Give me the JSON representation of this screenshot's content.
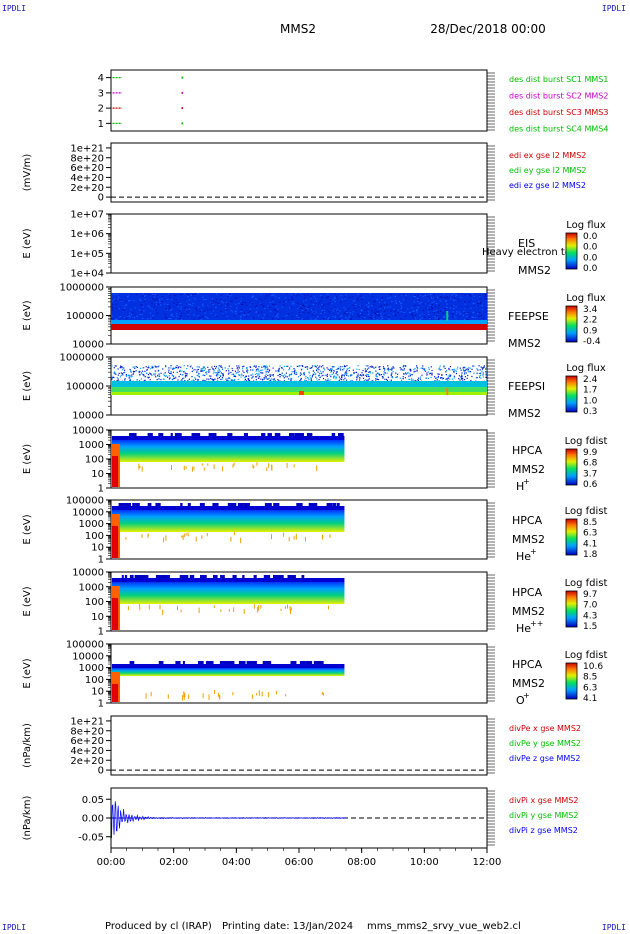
{
  "corners": {
    "label": "IPDLI"
  },
  "header": {
    "spacecraft": "MMS2",
    "date": "28/Dec/2018 00:00"
  },
  "footer": {
    "produced_by": "Produced by cl (IRAP)",
    "printing_date": "Printing date: 13/Jan/2024",
    "file": "mms_mms2_srvy_vue_web2.cl"
  },
  "colors": {
    "red": "#ff0000",
    "green": "#00c000",
    "blue": "#0000ff",
    "magenta": "#cc00cc"
  },
  "chart_data": [
    {
      "type": "line",
      "id": "burst",
      "ylim": [
        0.5,
        4.5
      ],
      "yticks": [
        1,
        2,
        3,
        4
      ],
      "ytick_labels": [
        "1",
        "2",
        "3",
        "4"
      ],
      "ylabel": "",
      "series": [
        {
          "name": "des dist burst SC1 MMS1",
          "color": "#00c000",
          "level": 4,
          "segments": [
            [
              0.05,
              0.35
            ]
          ]
        },
        {
          "name": "des dist burst SC2 MMS2",
          "color": "#cc00cc",
          "level": 3,
          "segments": [
            [
              0.05,
              0.35
            ]
          ]
        },
        {
          "name": "des dist burst SC3 MMS3",
          "color": "#cc0000",
          "level": 2,
          "segments": [
            [
              0.05,
              0.35
            ]
          ]
        },
        {
          "name": "des dist burst SC4 MMS4",
          "color": "#00c000",
          "level": 1,
          "segments": [
            [
              0.05,
              0.35
            ]
          ]
        }
      ]
    },
    {
      "type": "line",
      "id": "edi",
      "ylabel": "(mV/m)",
      "ylim": [
        -1e+20,
        1.1e+21
      ],
      "yticks": [
        0,
        2e+20,
        4e+20,
        6e+20,
        8e+20,
        1e+21
      ],
      "ytick_labels": [
        "0",
        "2e+20",
        "4e+20",
        "6e+20",
        "8e+20",
        "1e+21"
      ],
      "zero_line": true,
      "series": [
        {
          "name": "edi ex gse l2 MMS2",
          "color": "#cc0000"
        },
        {
          "name": "edi ey gse l2 MMS2",
          "color": "#00c000"
        },
        {
          "name": "edi ez gse l2 MMS2",
          "color": "#0000ff"
        }
      ]
    },
    {
      "type": "heatmap",
      "id": "eis",
      "ylabel": "E (eV)",
      "ylim": [
        10000,
        10000000
      ],
      "ytick_labels": [
        "1e+04",
        "1e+05",
        "1e+06",
        "1e+07"
      ],
      "labels": [
        "EIS",
        "MMS2"
      ],
      "overlay_text": "Heavy electron tof",
      "colorbar": {
        "title": "Log flux",
        "ticks": [
          "0.0",
          "0.0",
          "0.0",
          "0.0"
        ]
      }
    },
    {
      "type": "heatmap",
      "id": "feepse",
      "ylabel": "E (eV)",
      "ylim": [
        10000,
        1000000
      ],
      "ytick_labels": [
        "10000",
        "100000",
        "1000000"
      ],
      "labels": [
        "FEEPSE",
        "MMS2"
      ],
      "colorbar": {
        "title": "Log flux",
        "ticks": [
          "3.4",
          "2.2",
          "0.9",
          "-0.4"
        ]
      }
    },
    {
      "type": "heatmap",
      "id": "feepsi",
      "ylabel": "E (eV)",
      "ylim": [
        10000,
        1000000
      ],
      "ytick_labels": [
        "10000",
        "100000",
        "1000000"
      ],
      "labels": [
        "FEEPSI",
        "MMS2"
      ],
      "colorbar": {
        "title": "Log flux",
        "ticks": [
          "2.4",
          "1.7",
          "1.0",
          "0.3"
        ]
      }
    },
    {
      "type": "heatmap",
      "id": "hpca_h",
      "ylabel": "E (eV)",
      "ylim": [
        1,
        10000
      ],
      "ytick_labels": [
        "1",
        "10",
        "100",
        "1000",
        "10000"
      ],
      "labels": [
        "HPCA",
        "MMS2",
        "H"
      ],
      "species_sup": "+",
      "colorbar": {
        "title": "Log fdist",
        "ticks": [
          "9.9",
          "6.8",
          "3.7",
          "0.6"
        ]
      }
    },
    {
      "type": "heatmap",
      "id": "hpca_he",
      "ylabel": "E (eV)",
      "ylim": [
        1,
        100000
      ],
      "ytick_labels": [
        "1",
        "10",
        "100",
        "1000",
        "10000",
        "100000"
      ],
      "labels": [
        "HPCA",
        "MMS2",
        "He"
      ],
      "species_sup": "+",
      "colorbar": {
        "title": "Log fdist",
        "ticks": [
          "8.5",
          "6.3",
          "4.1",
          "1.8"
        ]
      }
    },
    {
      "type": "heatmap",
      "id": "hpca_hepp",
      "ylabel": "E (eV)",
      "ylim": [
        1,
        10000
      ],
      "ytick_labels": [
        "1",
        "10",
        "100",
        "1000",
        "10000"
      ],
      "labels": [
        "HPCA",
        "MMS2",
        "He"
      ],
      "species_sup": "++",
      "colorbar": {
        "title": "Log fdist",
        "ticks": [
          "9.7",
          "7.0",
          "4.3",
          "1.5"
        ]
      }
    },
    {
      "type": "heatmap",
      "id": "hpca_o",
      "ylabel": "E (eV)",
      "ylim": [
        1,
        100000
      ],
      "ytick_labels": [
        "1",
        "10",
        "100",
        "1000",
        "10000",
        "100000"
      ],
      "labels": [
        "HPCA",
        "MMS2",
        "O"
      ],
      "species_sup": "+",
      "colorbar": {
        "title": "Log fdist",
        "ticks": [
          "10.6",
          "8.5",
          "6.3",
          "4.1"
        ]
      }
    },
    {
      "type": "line",
      "id": "divpe",
      "ylabel": "(nPa/km)",
      "ylim": [
        -1e+20,
        1.1e+21
      ],
      "yticks": [
        0,
        2e+20,
        4e+20,
        6e+20,
        8e+20,
        1e+21
      ],
      "ytick_labels": [
        "0",
        "2e+20",
        "4e+20",
        "6e+20",
        "8e+20",
        "1e+21"
      ],
      "zero_line": true,
      "series": [
        {
          "name": "divPe x gse MMS2",
          "color": "#cc0000"
        },
        {
          "name": "divPe y gse MMS2",
          "color": "#00c000"
        },
        {
          "name": "divPe z gse MMS2",
          "color": "#0000ff"
        }
      ]
    },
    {
      "type": "line",
      "id": "divpi",
      "ylabel": "(nPa/km)",
      "ylim": [
        -0.08,
        0.08
      ],
      "yticks": [
        -0.05,
        0,
        0.05
      ],
      "ytick_labels": [
        "-0.05",
        "0.00",
        "0.05"
      ],
      "zero_line": true,
      "series": [
        {
          "name": "divPi x gse MMS2",
          "color": "#cc0000"
        },
        {
          "name": "divPi y gse MMS2",
          "color": "#00c000"
        },
        {
          "name": "divPi z gse MMS2",
          "color": "#0000ff",
          "trace": "damped"
        }
      ]
    }
  ],
  "xaxis": {
    "range_hours": [
      0,
      12
    ],
    "tick_labels": [
      "00:00",
      "02:00",
      "04:00",
      "06:00",
      "08:00",
      "10:00",
      "12:00"
    ]
  }
}
